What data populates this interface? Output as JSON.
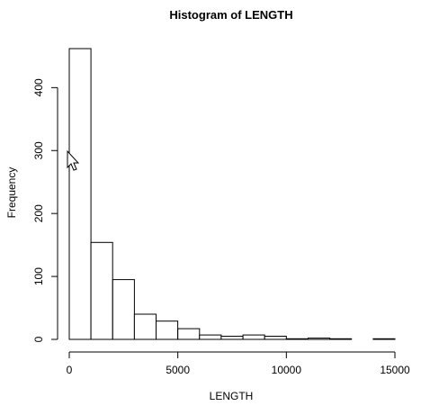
{
  "chart_data": {
    "type": "bar",
    "title": "Histogram of LENGTH",
    "xlabel": "LENGTH",
    "ylabel": "Frequency",
    "bin_edges": [
      0,
      1000,
      2000,
      3000,
      4000,
      5000,
      6000,
      7000,
      8000,
      9000,
      10000,
      11000,
      12000,
      13000,
      14000,
      15000
    ],
    "values": [
      462,
      154,
      95,
      40,
      29,
      17,
      7,
      5,
      7,
      5,
      1,
      2,
      1,
      0,
      1
    ],
    "xlim": [
      0,
      15000
    ],
    "ylim": [
      0,
      462
    ],
    "x_ticks": [
      0,
      5000,
      10000,
      15000
    ],
    "y_ticks": [
      0,
      100,
      200,
      300,
      400
    ],
    "grid": false,
    "legend": "none",
    "bar_fill": "#ffffff",
    "bar_stroke": "#000000"
  }
}
